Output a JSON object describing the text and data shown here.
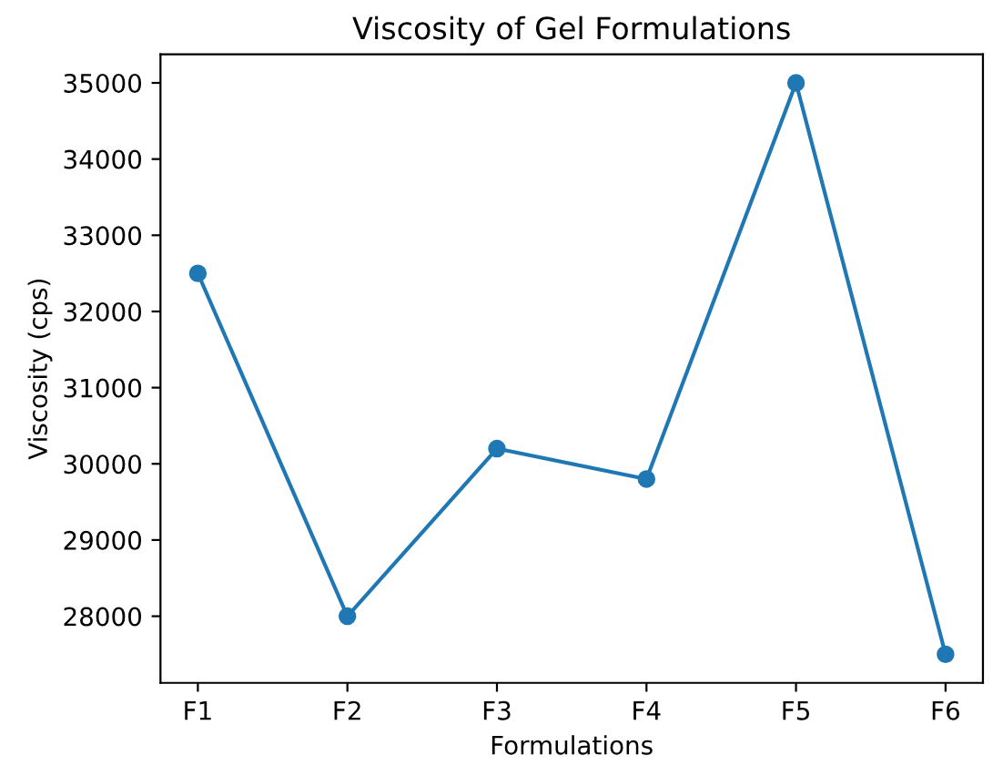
{
  "chart_data": {
    "type": "line",
    "title": "Viscosity of Gel Formulations",
    "xlabel": "Formulations",
    "ylabel": "Viscosity (cps)",
    "categories": [
      "F1",
      "F2",
      "F3",
      "F4",
      "F5",
      "F6"
    ],
    "series": [
      {
        "color": "#1f77b4",
        "values": [
          32500,
          28000,
          30200,
          29800,
          35000,
          27500
        ]
      }
    ],
    "ylim": [
      27125,
      35375
    ],
    "yticks": [
      28000,
      29000,
      30000,
      31000,
      32000,
      33000,
      34000,
      35000
    ],
    "marker": "circle",
    "line_style": "solid",
    "grid": false,
    "legend": false
  }
}
